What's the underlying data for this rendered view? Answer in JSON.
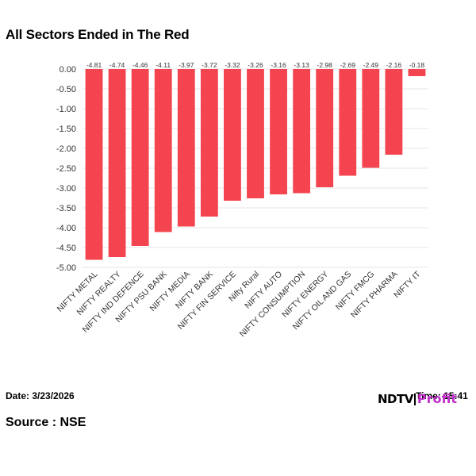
{
  "title": "All Sectors Ended in The Red",
  "footer": {
    "date_label": "Date: 3/23/2026",
    "time_label": "Time: 15:41",
    "source_label": "Source : NSE"
  },
  "logo": {
    "ndtv": "NDTV",
    "profit": "Profit",
    "accent_color": "#c030c8"
  },
  "colors": {
    "bar": "#f4444f",
    "grid": "#e6e6e6",
    "axis_text": "#333333"
  },
  "chart_data": {
    "type": "bar",
    "title": "All Sectors Ended in The Red",
    "xlabel": "",
    "ylabel": "",
    "ylim": [
      -5.0,
      0.0
    ],
    "yticks": [
      0.0,
      -0.5,
      -1.0,
      -1.5,
      -2.0,
      -2.5,
      -3.0,
      -3.5,
      -4.0,
      -4.5,
      -5.0
    ],
    "ytick_labels": [
      "0.00",
      "-0.50",
      "-1.00",
      "-1.50",
      "-2.00",
      "-2.50",
      "-3.00",
      "-3.50",
      "-4.00",
      "-4.50",
      "-5.00"
    ],
    "grid": true,
    "categories": [
      "NIFTY METAL",
      "NIFTY REALTY",
      "NIFTY IND DEFENCE",
      "NIFTY PSU BANK",
      "NIFTY MEDIA",
      "NIFTY BANK",
      "NIFTY FIN SERVICE",
      "Nifty Rural",
      "NIFTY AUTO",
      "NIFTY CONSUMPTION",
      "NIFTY ENERGY",
      "NIFTY OIL AND GAS",
      "NIFTY FMCG",
      "NIFTY PHARMA",
      "NIFTY IT"
    ],
    "values": [
      -4.81,
      -4.74,
      -4.46,
      -4.11,
      -3.97,
      -3.72,
      -3.32,
      -3.26,
      -3.16,
      -3.13,
      -2.98,
      -2.69,
      -2.49,
      -2.16,
      -0.18
    ],
    "value_labels": [
      "-4.81",
      "-4.74",
      "-4.46",
      "-4.11",
      "-3.97",
      "-3.72",
      "-3.32",
      "-3.26",
      "-3.16",
      "-3.13",
      "-2.98",
      "-2.69",
      "-2.49",
      "-2.16",
      "-0.18"
    ]
  }
}
